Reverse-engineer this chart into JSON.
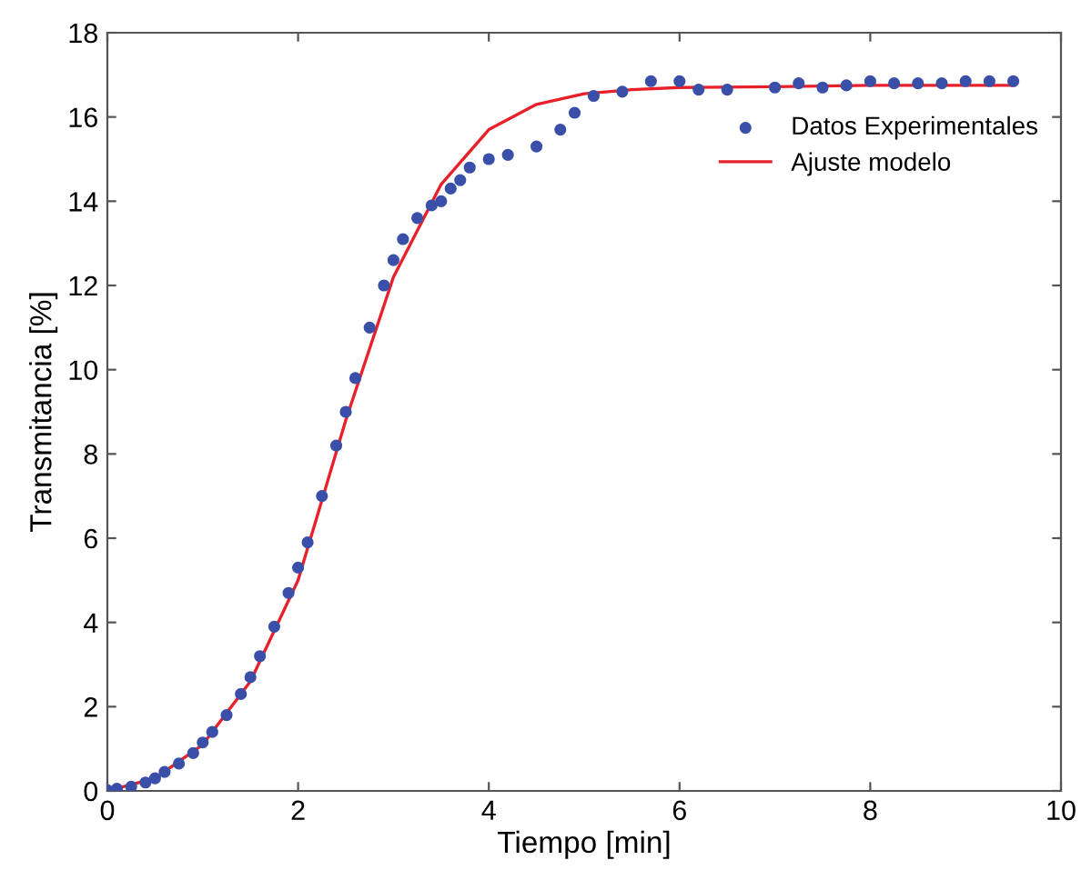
{
  "chart_data": {
    "type": "scatter",
    "xlabel": "Tiempo [min]",
    "ylabel": "Transmitancia [%]",
    "xlim": [
      0,
      10
    ],
    "ylim": [
      0,
      18
    ],
    "xticks": [
      0,
      2,
      4,
      6,
      8,
      10
    ],
    "yticks": [
      0,
      2,
      4,
      6,
      8,
      10,
      12,
      14,
      16,
      18
    ],
    "grid": false,
    "legend": "top right",
    "series": [
      {
        "name": "Datos Experimentales",
        "marker": "circle",
        "color": "#3a4fa8",
        "x": [
          0,
          0.1,
          0.25,
          0.4,
          0.5,
          0.6,
          0.75,
          0.9,
          1.0,
          1.1,
          1.25,
          1.4,
          1.5,
          1.6,
          1.75,
          1.9,
          2.0,
          2.1,
          2.25,
          2.4,
          2.5,
          2.6,
          2.75,
          2.9,
          3.0,
          3.1,
          3.25,
          3.4,
          3.5,
          3.6,
          3.7,
          3.8,
          4.0,
          4.2,
          4.5,
          4.75,
          4.9,
          5.1,
          5.4,
          5.7,
          6.0,
          6.2,
          6.5,
          7.0,
          7.25,
          7.5,
          7.75,
          8.0,
          8.25,
          8.5,
          8.75,
          9.0,
          9.25,
          9.5
        ],
        "values": [
          0.02,
          0.05,
          0.1,
          0.2,
          0.3,
          0.45,
          0.65,
          0.9,
          1.15,
          1.4,
          1.8,
          2.3,
          2.7,
          3.2,
          3.9,
          4.7,
          5.3,
          5.9,
          7.0,
          8.2,
          9.0,
          9.8,
          11.0,
          12.0,
          12.6,
          13.1,
          13.6,
          13.9,
          14.0,
          14.3,
          14.5,
          14.8,
          15.0,
          15.1,
          15.3,
          15.7,
          16.1,
          16.5,
          16.6,
          16.85,
          16.85,
          16.65,
          16.65,
          16.7,
          16.8,
          16.7,
          16.75,
          16.85,
          16.8,
          16.8,
          16.8,
          16.85,
          16.85,
          16.85
        ]
      },
      {
        "name": "Ajuste modelo",
        "type": "line",
        "line_style": "solid",
        "marker": "none",
        "color": "#e8202a",
        "x": [
          0,
          0.5,
          1.0,
          1.5,
          2.0,
          2.5,
          3.0,
          3.5,
          4.0,
          4.5,
          5.0,
          5.5,
          6.0,
          7.0,
          8.0,
          9.5
        ],
        "values": [
          0,
          0.3,
          1.1,
          2.6,
          5.0,
          8.8,
          12.2,
          14.4,
          15.7,
          16.3,
          16.55,
          16.65,
          16.7,
          16.72,
          16.75,
          16.75
        ]
      }
    ]
  }
}
